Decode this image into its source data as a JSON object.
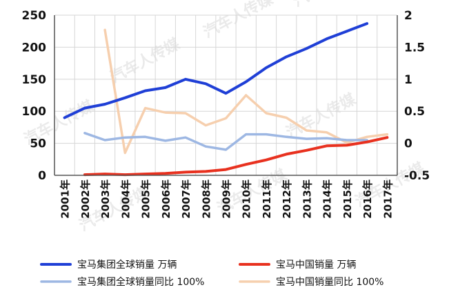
{
  "chart_data": {
    "type": "line",
    "categories": [
      "2001年",
      "2002年",
      "2003年",
      "2004年",
      "2005年",
      "2006年",
      "2007年",
      "2008年",
      "2009年",
      "2010年",
      "2011年",
      "2012年",
      "2013年",
      "2014年",
      "2015年",
      "2016年",
      "2017年"
    ],
    "left_axis": {
      "min": 0,
      "max": 250,
      "ticks": [
        "0",
        "50",
        "100",
        "150",
        "200",
        "250"
      ]
    },
    "right_axis": {
      "min": -0.5,
      "max": 2,
      "ticks": [
        "-0.5",
        "0",
        "0.5",
        "1",
        "1.5",
        "2"
      ]
    },
    "grid": true,
    "legend_position": "bottom",
    "series": [
      {
        "name": "宝马集团全球销量  万辆",
        "axis": "left",
        "color": "#1f3fd6",
        "values": [
          90,
          105,
          111,
          121,
          132,
          137,
          150,
          143,
          128,
          146,
          168,
          185,
          198,
          213,
          225,
          237,
          null
        ]
      },
      {
        "name": "宝马中国销量  万辆",
        "axis": "left",
        "color": "#e8311f",
        "values": [
          null,
          1,
          2,
          1,
          2,
          3,
          5,
          6,
          9,
          17,
          24,
          33,
          39,
          46,
          47,
          52,
          59
        ]
      },
      {
        "name": "宝马集团全球销量同比  100%",
        "axis": "right",
        "color": "#9db7e3",
        "values": [
          null,
          0.16,
          0.05,
          0.09,
          0.1,
          0.04,
          0.09,
          -0.05,
          -0.1,
          0.14,
          0.14,
          0.1,
          0.07,
          0.08,
          0.05,
          0.05,
          null
        ]
      },
      {
        "name": "宝马中国销量同比  100%",
        "axis": "right",
        "color": "#f6cfae",
        "values": [
          null,
          null,
          1.77,
          -0.15,
          0.55,
          0.48,
          0.47,
          0.28,
          0.39,
          0.75,
          0.47,
          0.4,
          0.2,
          0.17,
          0.01,
          0.1,
          0.14
        ]
      }
    ]
  },
  "watermark": "汽车人传媒"
}
